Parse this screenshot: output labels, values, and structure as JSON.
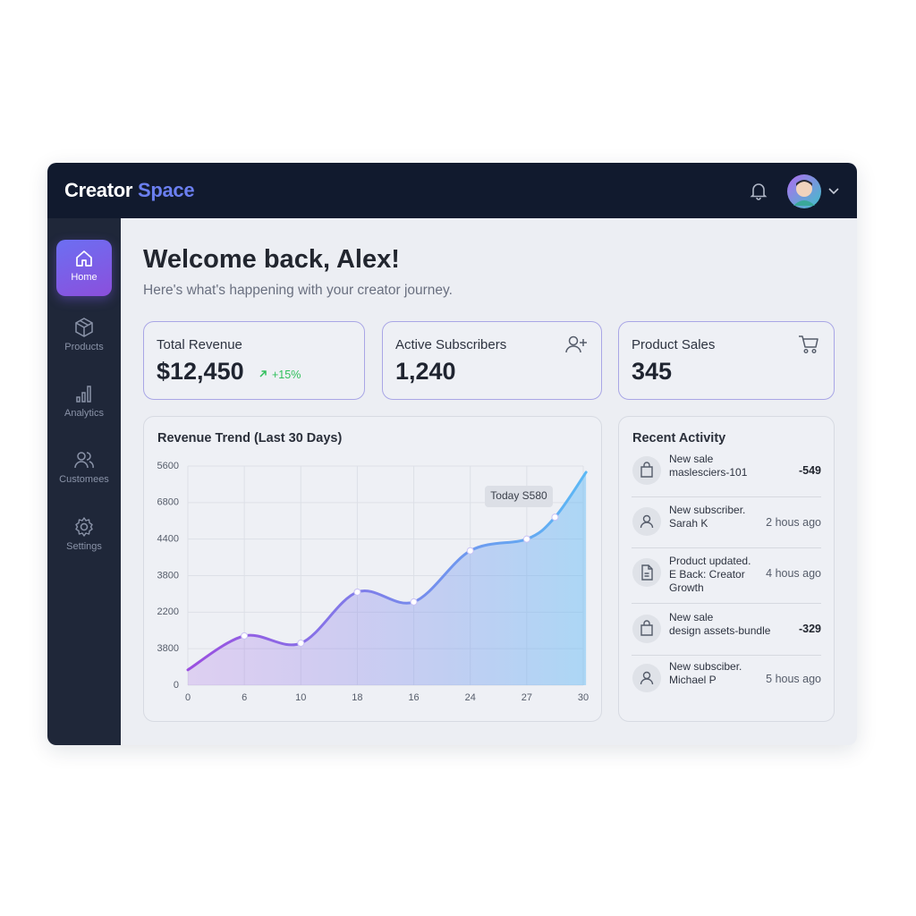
{
  "header": {
    "brand_first": "Creator",
    "brand_second": "Space"
  },
  "sidebar": {
    "items": [
      "Home",
      "Products",
      "Analytics",
      "Customees",
      "Settings"
    ]
  },
  "welcome": {
    "title": "Welcome back, Alex!",
    "subtitle": "Here's what's happening with your creator journey."
  },
  "stats": [
    {
      "label": "Total Revenue",
      "value": "$12,450",
      "change": "+15%"
    },
    {
      "label": "Active Subscribers",
      "value": "1,240"
    },
    {
      "label": "Product Sales",
      "value": "345"
    }
  ],
  "chart_data": {
    "type": "line",
    "title": "Revenue Trend (Last 30 Days)",
    "x": [
      0,
      1,
      2,
      3,
      4,
      5,
      6,
      6.5,
      7.05
    ],
    "series": [
      {
        "color": "#9b4fe0",
        "color_end": "#5bb8f5",
        "values": [
          0.42,
          1.35,
          1.15,
          2.55,
          2.28,
          3.68,
          4.0,
          4.6,
          5.83
        ]
      }
    ],
    "xlim": [
      0,
      7
    ],
    "ylim": [
      0,
      6
    ],
    "xticks": [
      0,
      {
        "value": 1,
        "label": "6"
      },
      {
        "value": 2,
        "label": "10"
      },
      {
        "value": 3,
        "label": "18"
      },
      {
        "value": 4,
        "label": "16"
      },
      {
        "value": 5,
        "label": "24"
      },
      {
        "value": 6,
        "label": "27"
      },
      {
        "value": 7,
        "label": "30"
      }
    ],
    "yticks": [
      0,
      {
        "value": 1,
        "label": "3800"
      },
      {
        "value": 2,
        "label": "2200"
      },
      {
        "value": 3,
        "label": "3800"
      },
      {
        "value": 4,
        "label": "4400"
      },
      {
        "value": 5,
        "label": "6800"
      },
      {
        "value": 6,
        "label": "5600"
      }
    ],
    "grid": true,
    "annotation": "Today S580"
  },
  "activity": {
    "title": "Recent Activity",
    "items": [
      {
        "title": "New sale",
        "detail": "maslesciers-101",
        "meta": "-549"
      },
      {
        "title": "New subscriber.",
        "detail": "Sarah K",
        "meta": "2 hous ago"
      },
      {
        "title": "Product updated.",
        "detail": "E Back: Creator Growth",
        "meta": "4 hous ago"
      },
      {
        "title": "New sale",
        "detail": "design assets-bundle",
        "meta": "-329"
      },
      {
        "title": "New subsciber.",
        "detail": "Michael P",
        "meta": "5 hous ago"
      }
    ]
  }
}
